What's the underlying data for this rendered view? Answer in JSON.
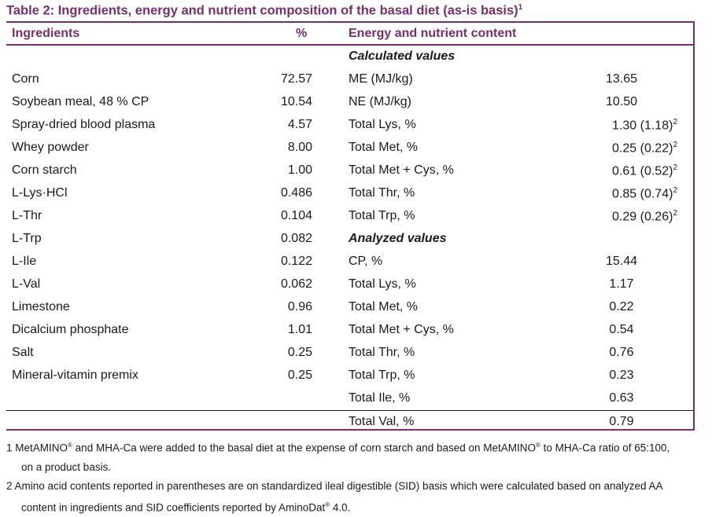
{
  "title": "Table 2: Ingredients, energy and nutrient composition of the basal diet (as-is basis)",
  "title_sup": "1",
  "headers": {
    "ingredients": "Ingredients",
    "percent": "%",
    "energy": "Energy and nutrient content"
  },
  "rows": [
    {
      "ingredient": "",
      "pct": "",
      "nutrient": "Calculated values",
      "value": "",
      "sup": ""
    },
    {
      "ingredient": "Corn",
      "pct": "72.57",
      "nutrient": "ME (MJ/kg)",
      "value": "13.65",
      "sup": ""
    },
    {
      "ingredient": "Soybean meal, 48 % CP",
      "pct": "10.54",
      "nutrient": "NE (MJ/kg)",
      "value": "10.50",
      "sup": ""
    },
    {
      "ingredient": "Spray-dried blood plasma",
      "pct": "4.57",
      "nutrient": "Total Lys, %",
      "value": "1.30 (1.18)",
      "sup": "2"
    },
    {
      "ingredient": "Whey powder",
      "pct": "8.00",
      "nutrient": "Total Met, %",
      "value": "0.25 (0.22)",
      "sup": "2"
    },
    {
      "ingredient": "Corn starch",
      "pct": "1.00",
      "nutrient": "Total Met + Cys, %",
      "value": "0.61 (0.52)",
      "sup": "2"
    },
    {
      "ingredient": "L-Lys·HCl",
      "pct": "0.486",
      "nutrient": "Total Thr, %",
      "value": "0.85 (0.74)",
      "sup": "2"
    },
    {
      "ingredient": "L-Thr",
      "pct": "0.104",
      "nutrient": "Total Trp, %",
      "value": "0.29 (0.26)",
      "sup": "2"
    },
    {
      "ingredient": "L-Trp",
      "pct": "0.082",
      "nutrient": "Analyzed values",
      "value": "",
      "sup": ""
    },
    {
      "ingredient": "L-Ile",
      "pct": "0.122",
      "nutrient": "CP, %",
      "value": "15.44",
      "sup": ""
    },
    {
      "ingredient": "L-Val",
      "pct": "0.062",
      "nutrient": "Total Lys, %",
      "value": "1.17",
      "sup": ""
    },
    {
      "ingredient": "Limestone",
      "pct": "0.96",
      "nutrient": "Total Met, %",
      "value": "0.22",
      "sup": ""
    },
    {
      "ingredient": "Dicalcium phosphate",
      "pct": "1.01",
      "nutrient": "Total Met + Cys, %",
      "value": "0.54",
      "sup": ""
    },
    {
      "ingredient": "Salt",
      "pct": "0.25",
      "nutrient": "Total Thr, %",
      "value": "0.76",
      "sup": ""
    },
    {
      "ingredient": "Mineral-vitamin premix",
      "pct": "0.25",
      "nutrient": "Total Trp, %",
      "value": "0.23",
      "sup": ""
    },
    {
      "ingredient": "",
      "pct": "",
      "nutrient": "Total Ile, %",
      "value": "0.63",
      "sup": ""
    },
    {
      "ingredient": "",
      "pct": "",
      "nutrient": "Total Val, %",
      "value": "0.79",
      "sup": ""
    }
  ],
  "notes": {
    "n1_a": "1 MetAMINO",
    "n1_reg1": "®",
    "n1_b": " and MHA-Ca were added to the basal diet at the expense of corn starch and based on MetAMINO",
    "n1_reg2": "®",
    "n1_c": " to MHA-Ca ratio of 65:100,",
    "n1_d": "on a product basis.",
    "n2_a": "2 Amino acid contents reported in parentheses are on standardized ileal digestible (SID) basis which were calculated based on analyzed AA",
    "n2_b": "content in ingredients and SID coefficients reported by AminoDat",
    "n2_reg": "®",
    "n2_c": " 4.0."
  }
}
